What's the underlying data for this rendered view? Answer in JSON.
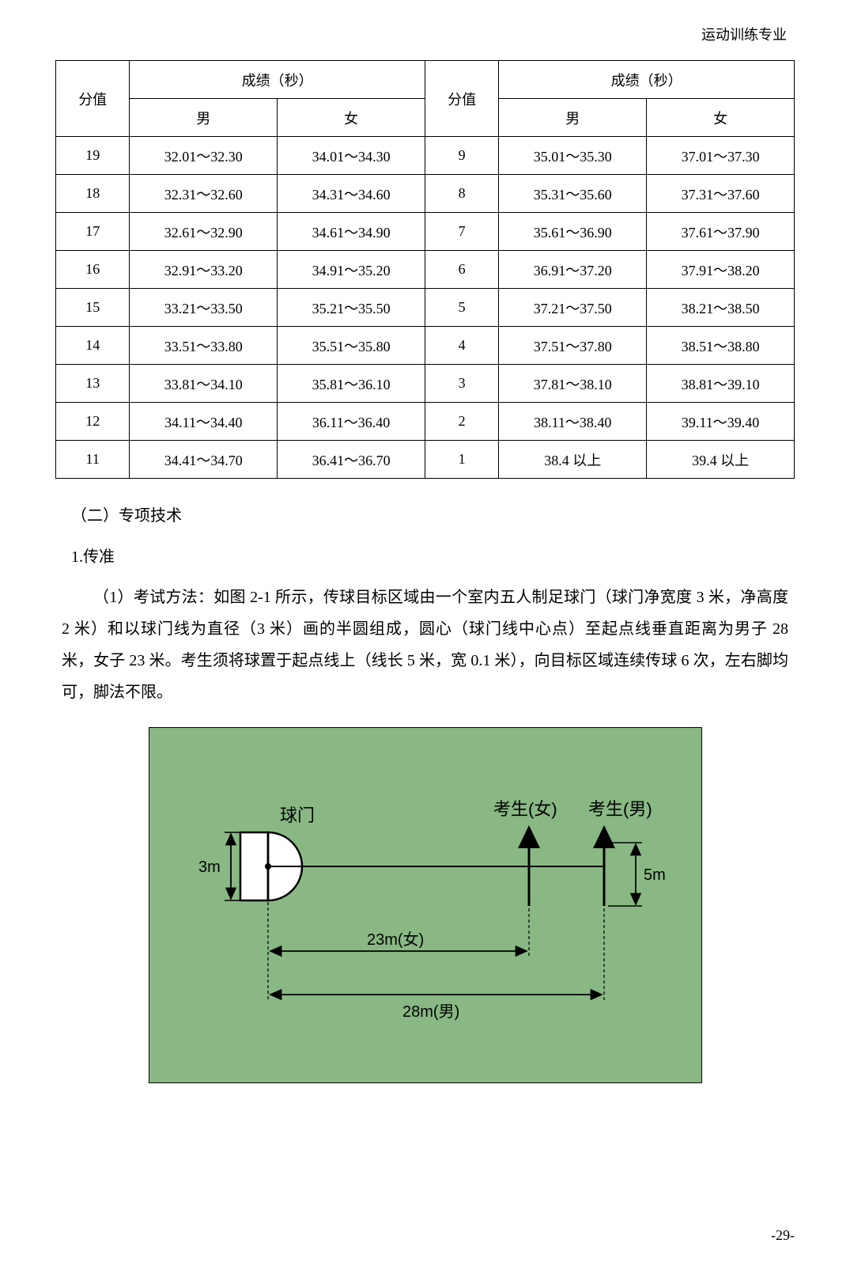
{
  "header": "运动训练专业",
  "table": {
    "header_score": "分值",
    "header_result": "成绩（秒）",
    "header_male": "男",
    "header_female": "女",
    "rows": [
      {
        "s1": "19",
        "m1": "32.01～32.30",
        "f1": "34.01～34.30",
        "s2": "9",
        "m2": "35.01～35.30",
        "f2": "37.01～37.30"
      },
      {
        "s1": "18",
        "m1": "32.31～32.60",
        "f1": "34.31～34.60",
        "s2": "8",
        "m2": "35.31～35.60",
        "f2": "37.31～37.60"
      },
      {
        "s1": "17",
        "m1": "32.61～32.90",
        "f1": "34.61～34.90",
        "s2": "7",
        "m2": "35.61～36.90",
        "f2": "37.61～37.90"
      },
      {
        "s1": "16",
        "m1": "32.91～33.20",
        "f1": "34.91～35.20",
        "s2": "6",
        "m2": "36.91～37.20",
        "f2": "37.91～38.20"
      },
      {
        "s1": "15",
        "m1": "33.21～33.50",
        "f1": "35.21～35.50",
        "s2": "5",
        "m2": "37.21～37.50",
        "f2": "38.21～38.50"
      },
      {
        "s1": "14",
        "m1": "33.51～33.80",
        "f1": "35.51～35.80",
        "s2": "4",
        "m2": "37.51～37.80",
        "f2": "38.51～38.80"
      },
      {
        "s1": "13",
        "m1": "33.81～34.10",
        "f1": "35.81～36.10",
        "s2": "3",
        "m2": "37.81～38.10",
        "f2": "38.81～39.10"
      },
      {
        "s1": "12",
        "m1": "34.11～34.40",
        "f1": "36.11～36.40",
        "s2": "2",
        "m2": "38.11～38.40",
        "f2": "39.11～39.40"
      },
      {
        "s1": "11",
        "m1": "34.41～34.70",
        "f1": "36.41～36.70",
        "s2": "1",
        "m2": "38.4 以上",
        "f2": "39.4 以上"
      }
    ]
  },
  "section": {
    "title": "（二）专项技术",
    "sub": "1.传准",
    "body": "（1）考试方法：如图 2-1 所示，传球目标区域由一个室内五人制足球门（球门净宽度 3 米，净高度 2 米）和以球门线为直径（3 米）画的半圆组成，圆心（球门线中心点）至起点线垂直距离为男子 28 米，女子 23 米。考生须将球置于起点线上（线长 5 米，宽 0.1 米），向目标区域连续传球 6 次，左右脚均可，脚法不限。"
  },
  "diagram": {
    "background_color": "#89b884",
    "labels": {
      "goal": "球门",
      "female": "考生(女)",
      "male": "考生(男)",
      "dim_3m": "3m",
      "dim_5m": "5m",
      "dim_23m": "23m(女)",
      "dim_28m": "28m(男)"
    }
  },
  "page_number": "-29-"
}
